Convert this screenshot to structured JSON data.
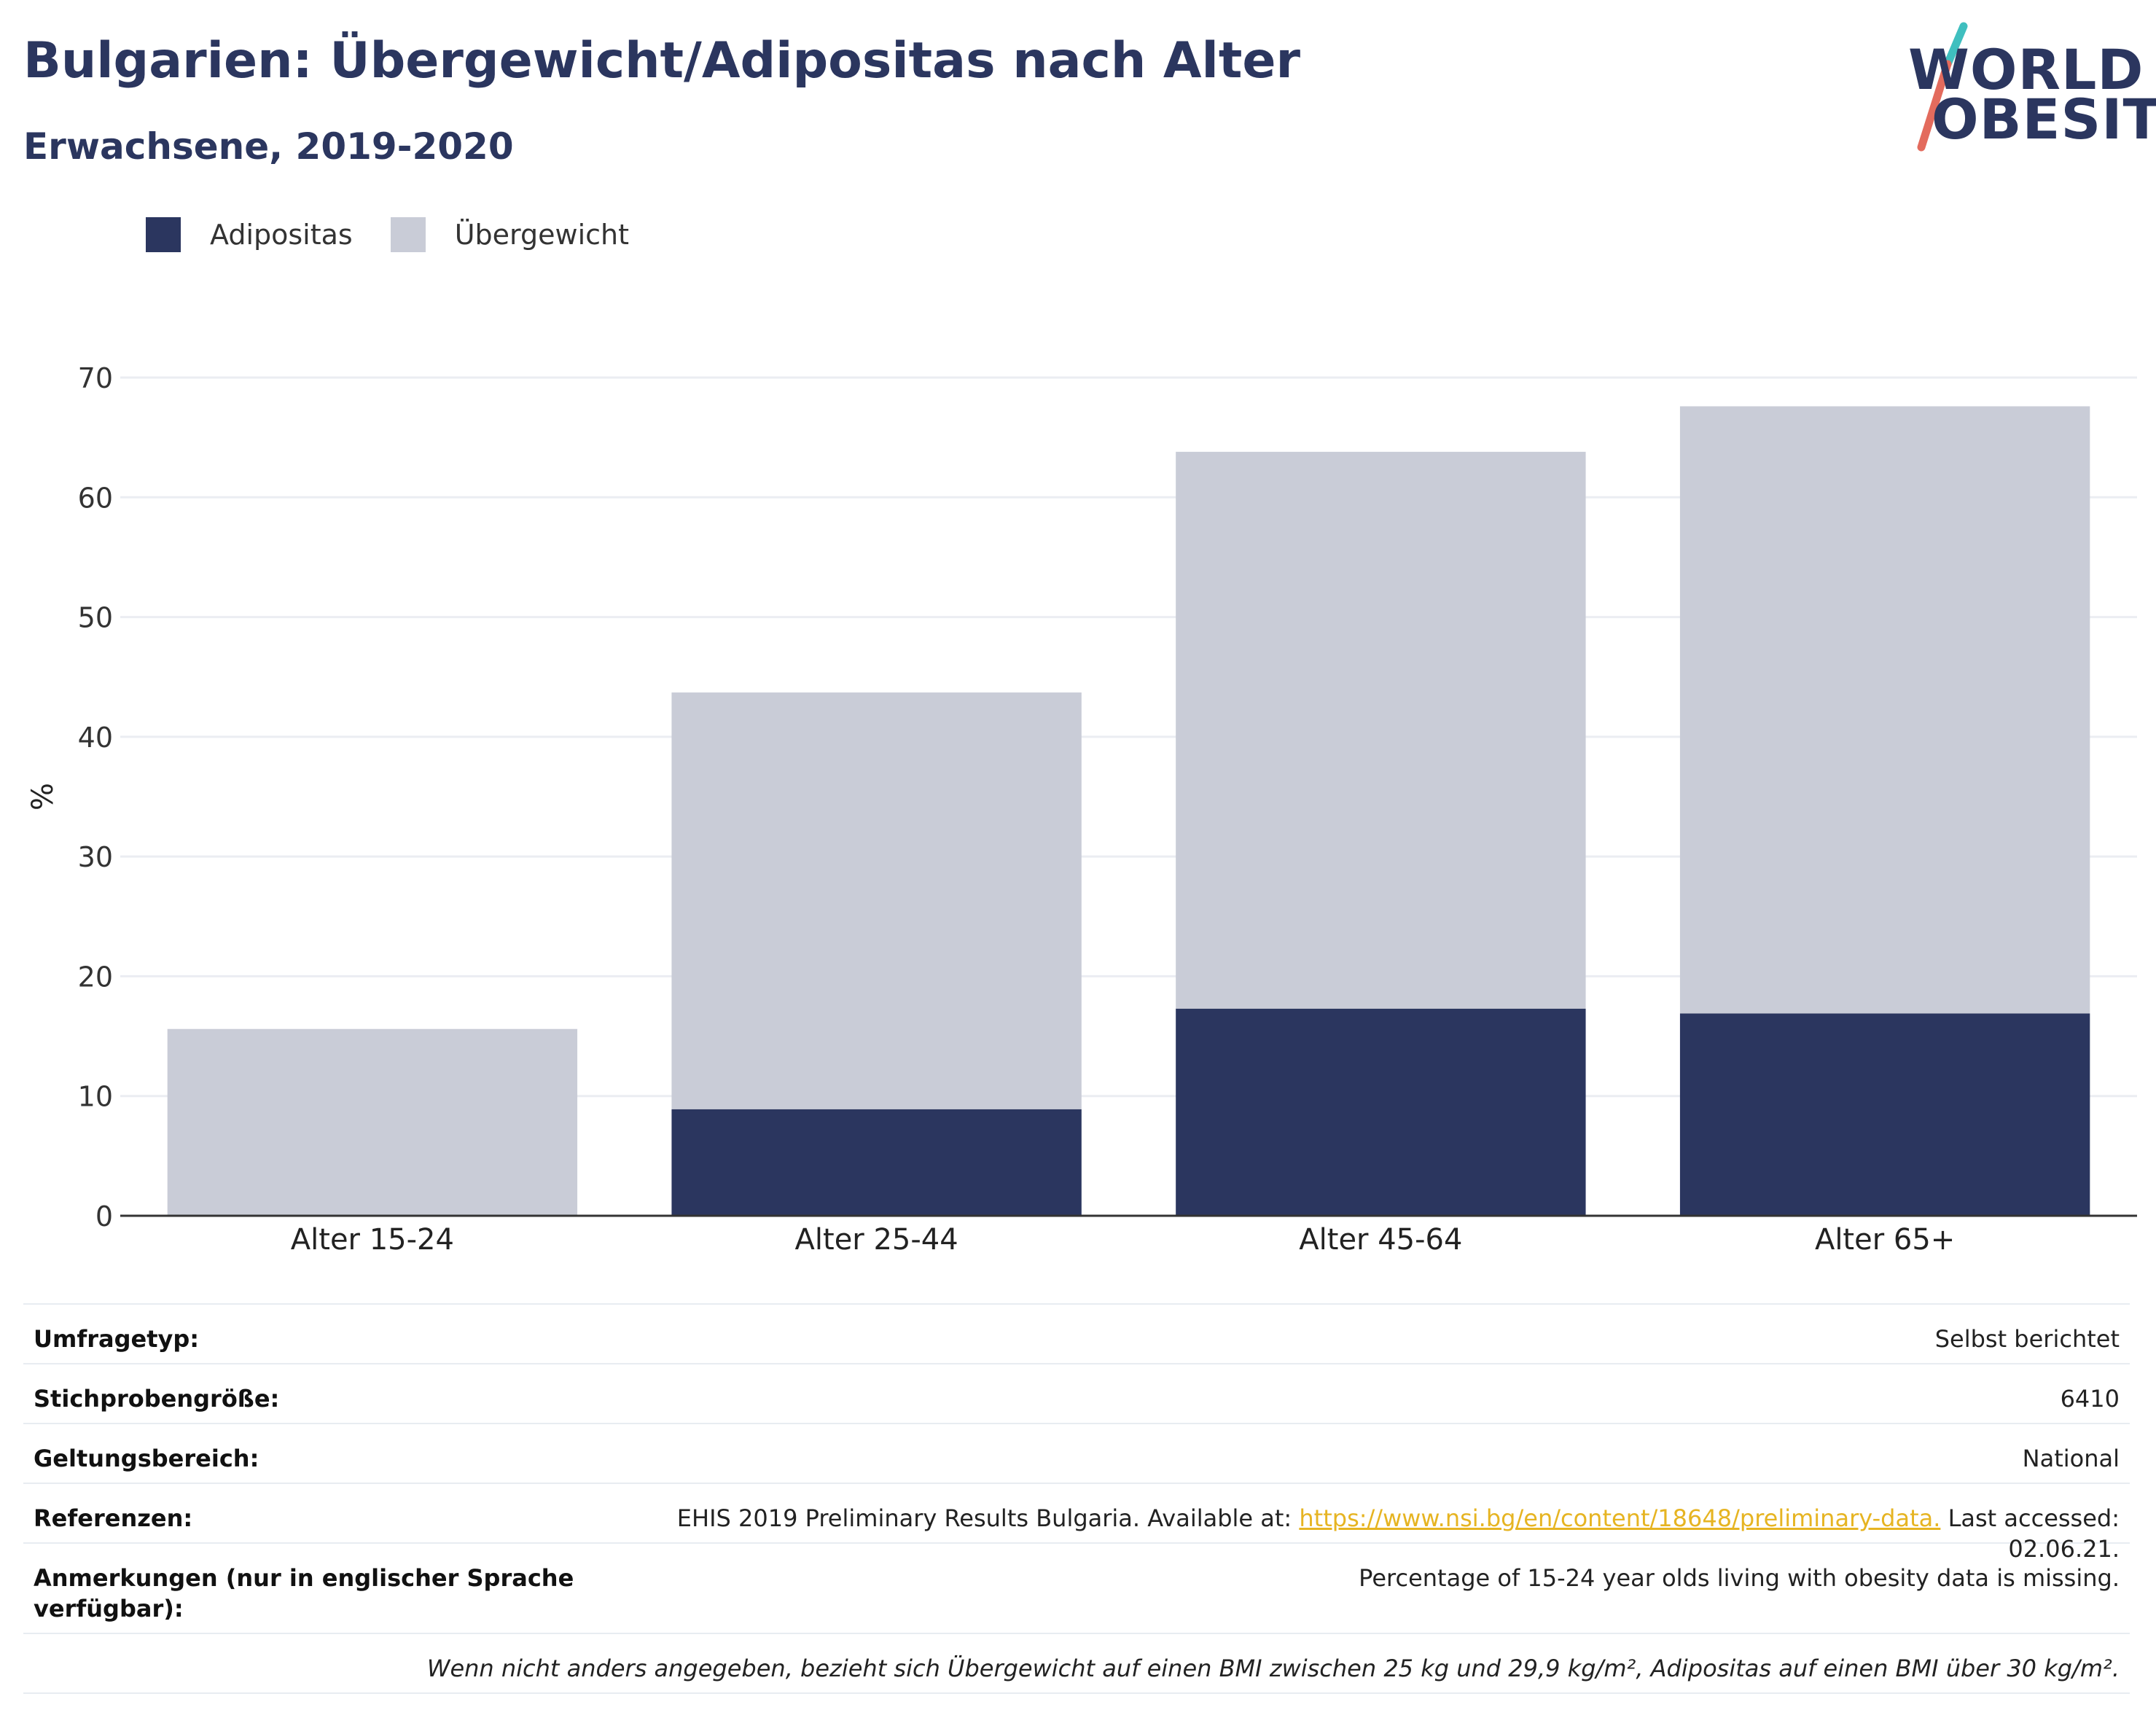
{
  "header": {
    "title": "Bulgarien: Übergewicht/Adipositas nach Alter",
    "subtitle": "Erwachsene, 2019-2020"
  },
  "logo": {
    "line1": "WORLD",
    "line2": "OBESITY",
    "accent_colors": [
      "#3fbfbf",
      "#e36b5d"
    ]
  },
  "legend": [
    {
      "label": "Adipositas",
      "color": "#2b365f"
    },
    {
      "label": "Übergewicht",
      "color": "#c9ccd7"
    }
  ],
  "chart_data": {
    "type": "bar",
    "stacked": true,
    "categories": [
      "Alter 15-24",
      "Alter 25-44",
      "Alter 45-64",
      "Alter 65+"
    ],
    "series": [
      {
        "name": "Adipositas",
        "values": [
          null,
          8.9,
          17.3,
          16.9
        ],
        "color": "#2b365f"
      },
      {
        "name": "Übergewicht",
        "values": [
          15.6,
          34.8,
          46.5,
          50.7
        ],
        "color": "#c9ccd7"
      }
    ],
    "ylabel": "%",
    "ylim": [
      0,
      70
    ],
    "yticks": [
      0,
      10,
      20,
      30,
      40,
      50,
      60,
      70
    ],
    "grid": true,
    "legend_position": "top-left"
  },
  "meta": {
    "survey_type": {
      "label": "Umfragetyp:",
      "value": "Selbst berichtet"
    },
    "sample_size": {
      "label": "Stichprobengröße:",
      "value": "6410"
    },
    "scope": {
      "label": "Geltungsbereich:",
      "value": "National"
    },
    "references": {
      "label": "Referenzen:",
      "prefix": "EHIS 2019 Preliminary Results Bulgaria. Available at: ",
      "link": "https://www.nsi.bg/en/content/18648/preliminary-data.",
      "suffix": " Last accessed: 02.06.21."
    },
    "notes": {
      "label": "Anmerkungen (nur in englischer Sprache verfügbar):",
      "value": "Percentage of 15-24 year olds living with obesity data is missing."
    },
    "footnote": "Wenn nicht anders angegeben, bezieht sich Übergewicht auf einen BMI zwischen 25 kg und 29,9 kg/m², Adipositas auf einen BMI über 30 kg/m²."
  }
}
